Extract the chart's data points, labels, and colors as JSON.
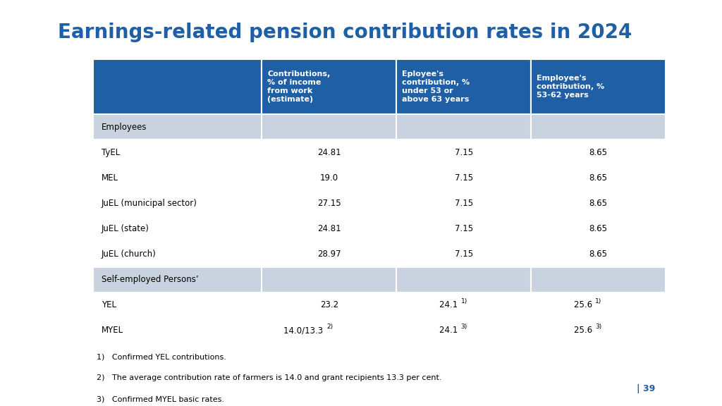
{
  "title": "Earnings-related pension contribution rates in 2024",
  "title_color": "#1F5FA6",
  "title_fontsize": 20,
  "header_bg": "#1F5FA6",
  "header_text_color": "#FFFFFF",
  "section_bg": "#C9D3E0",
  "row_bg": "#FFFFFF",
  "col_headers": [
    "Contributions,\n% of income\nfrom work\n(estimate)",
    "Eployee's\ncontribution, %\nunder 53 or\nabove 63 years",
    "Employee's\ncontribution, %\n53-62 years"
  ],
  "rows": [
    {
      "label": "Employees",
      "values": [
        "",
        "",
        ""
      ],
      "section": true
    },
    {
      "label": "TyEL",
      "values": [
        "24.81",
        "7.15",
        "8.65"
      ],
      "section": false,
      "superscripts": [
        "",
        "",
        ""
      ]
    },
    {
      "label": "MEL",
      "values": [
        "19.0",
        "7.15",
        "8.65"
      ],
      "section": false,
      "superscripts": [
        "",
        "",
        ""
      ]
    },
    {
      "label": "JuEL (municipal sector)",
      "values": [
        "27.15",
        "7.15",
        "8.65"
      ],
      "section": false,
      "superscripts": [
        "",
        "",
        ""
      ]
    },
    {
      "label": "JuEL (state)",
      "values": [
        "24.81",
        "7.15",
        "8.65"
      ],
      "section": false,
      "superscripts": [
        "",
        "",
        ""
      ]
    },
    {
      "label": "JuEL (church)",
      "values": [
        "28.97",
        "7.15",
        "8.65"
      ],
      "section": false,
      "superscripts": [
        "",
        "",
        ""
      ]
    },
    {
      "label": "Self-employed Persons’",
      "values": [
        "",
        "",
        ""
      ],
      "section": true
    },
    {
      "label": "YEL",
      "values": [
        "23.2",
        "24.1",
        "25.6"
      ],
      "section": false,
      "superscripts": [
        "",
        "1)",
        "1)"
      ]
    },
    {
      "label": "MYEL",
      "values": [
        "14.0/13.3",
        "24.1",
        "25.6"
      ],
      "section": false,
      "superscripts": [
        "2)",
        "3)",
        "3)"
      ]
    }
  ],
  "footnotes": [
    "1)   Confirmed YEL contributions.",
    "2)   The average contribution rate of farmers is 14.0 and grant recipients 13.3 per cent.",
    "3)   Confirmed MYEL basic rates."
  ],
  "page_number": "| 39",
  "right_bar_color": "#1F5FA6",
  "right_bar_color2": "#2E75B6"
}
